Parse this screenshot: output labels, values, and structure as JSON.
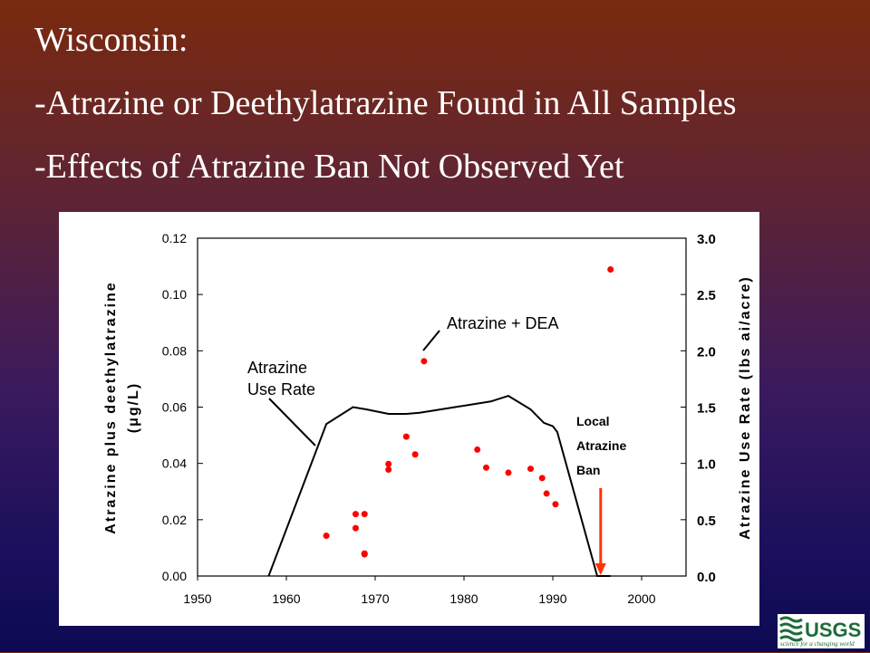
{
  "slide": {
    "line1": "Wisconsin:",
    "line2": "-Atrazine or Deethylatrazine Found in All Samples",
    "line3": "-Effects of Atrazine Ban Not Observed Yet"
  },
  "logo": {
    "text": "USGS",
    "tagline": "science for a changing world",
    "icon": "usgs-logo-icon"
  },
  "colors": {
    "points": "#ff0000",
    "arrow": "#ff3300",
    "line": "#000000",
    "panel": "#ffffff"
  },
  "chart_data": {
    "type": "scatter",
    "xlim": [
      1950,
      2005
    ],
    "x_ticks": [
      "1950",
      "1960",
      "1970",
      "1980",
      "1990",
      "2000"
    ],
    "ylabel": "Atrazine plus deethylatrazine",
    "ylabel_unit": "(μg/L)",
    "ylim": [
      0,
      0.12
    ],
    "y_ticks": [
      "0.00",
      "0.02",
      "0.04",
      "0.06",
      "0.08",
      "0.10",
      "0.12"
    ],
    "y2label": "Atrazine Use Rate (lbs ai/acre)",
    "y2lim": [
      0,
      3.0
    ],
    "y2_ticks": [
      "0.0",
      "0.5",
      "1.0",
      "1.5",
      "2.0",
      "2.5",
      "3.0"
    ],
    "annotations": {
      "dea": "Atrazine + DEA",
      "use_rate_1": "Atrazine",
      "use_rate_2": "Use Rate",
      "ban_1": "Local",
      "ban_2": "Atrazine",
      "ban_3": "Ban"
    },
    "series": [
      {
        "name": "Atrazine + DEA",
        "axis": "left",
        "points": [
          [
            1964.5,
            0.0143
          ],
          [
            1967.8,
            0.022
          ],
          [
            1967.8,
            0.017
          ],
          [
            1968.8,
            0.022
          ],
          [
            1968.8,
            0.008
          ],
          [
            1968.8,
            0.0077
          ],
          [
            1971.5,
            0.0398
          ],
          [
            1971.5,
            0.0378
          ],
          [
            1973.5,
            0.0495
          ],
          [
            1974.5,
            0.0432
          ],
          [
            1975.5,
            0.0763
          ],
          [
            1981.5,
            0.0449
          ],
          [
            1982.5,
            0.0385
          ],
          [
            1985.0,
            0.0367
          ],
          [
            1987.5,
            0.0381
          ],
          [
            1988.8,
            0.0348
          ],
          [
            1989.3,
            0.0293
          ],
          [
            1990.3,
            0.0255
          ],
          [
            1996.5,
            0.1089
          ]
        ]
      },
      {
        "name": "Atrazine Use Rate",
        "axis": "right",
        "points": [
          [
            1958,
            0.0
          ],
          [
            1964.5,
            1.35
          ],
          [
            1967.5,
            1.5
          ],
          [
            1969,
            1.48
          ],
          [
            1971.5,
            1.44
          ],
          [
            1973.5,
            1.44
          ],
          [
            1975,
            1.45
          ],
          [
            1979,
            1.5
          ],
          [
            1983,
            1.55
          ],
          [
            1985,
            1.6
          ],
          [
            1987.5,
            1.48
          ],
          [
            1989,
            1.36
          ],
          [
            1990,
            1.33
          ],
          [
            1990.5,
            1.28
          ],
          [
            1995,
            0.0
          ],
          [
            1996.5,
            0.0
          ]
        ]
      }
    ],
    "ban_year": 1996
  }
}
